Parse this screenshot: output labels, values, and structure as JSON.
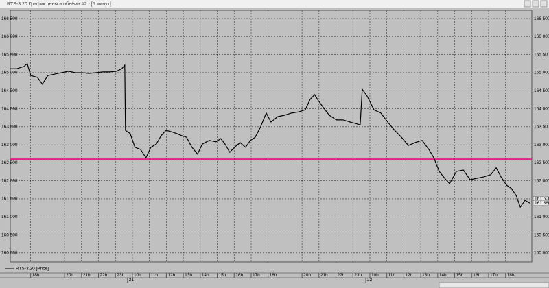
{
  "window_title": "RTS-3.20 График цены и объёма #2 - [5 минут]",
  "chart_data": {
    "type": "line",
    "legend": "RTS-3.20 [Price]",
    "series": [
      {
        "name": "RTS-3.20 [Price]",
        "color": "#000000",
        "x": [
          -1.2,
          -0.81,
          -0.4,
          -0.2,
          0,
          0.4,
          0.69,
          1.01,
          1.42,
          1.82,
          2.23,
          2.63,
          3.04,
          3.44,
          3.85,
          4.25,
          4.66,
          5.06,
          5.38,
          5.55,
          5.59,
          5.87,
          6.15,
          6.48,
          6.8,
          7.09,
          7.41,
          7.69,
          7.98,
          8.3,
          8.62,
          8.91,
          9.19,
          9.51,
          9.84,
          10.12,
          10.53,
          10.93,
          11.21,
          11.46,
          11.74,
          12.02,
          12.35,
          12.67,
          12.96,
          13.24,
          13.56,
          13.89,
          14.17,
          14.57,
          14.98,
          15.38,
          15.79,
          16.19,
          16.48,
          16.74,
          17.0,
          17.29,
          17.61,
          18.02,
          18.42,
          18.83,
          19.15,
          19.43,
          19.55,
          19.84,
          20.24,
          20.65,
          21.05,
          21.46,
          21.86,
          22.27,
          22.67,
          23.08,
          23.48,
          23.77,
          24.09,
          24.41,
          24.7,
          25.1,
          25.51,
          25.91,
          26.32,
          26.72,
          27.13,
          27.45,
          27.73,
          28.06,
          28.34,
          28.62,
          28.87,
          29.15,
          29.43
        ],
        "values": [
          165110,
          165110,
          165170,
          165250,
          164920,
          164870,
          164680,
          164920,
          164960,
          165000,
          165040,
          165000,
          165000,
          164980,
          165000,
          165020,
          165020,
          165040,
          165110,
          165210,
          163400,
          163310,
          162930,
          162870,
          162640,
          162930,
          163020,
          163250,
          163400,
          163360,
          163310,
          163250,
          163210,
          162930,
          162740,
          163020,
          163120,
          163080,
          163170,
          163020,
          162790,
          162930,
          163060,
          162930,
          163120,
          163210,
          163500,
          163880,
          163630,
          163780,
          163820,
          163880,
          163910,
          163970,
          164260,
          164390,
          164200,
          164010,
          163820,
          163690,
          163690,
          163630,
          163590,
          163550,
          164540,
          164350,
          163970,
          163880,
          163630,
          163400,
          163210,
          162980,
          163060,
          163120,
          162870,
          162640,
          162260,
          162070,
          161920,
          162260,
          162300,
          162030,
          162070,
          162110,
          162170,
          162360,
          162110,
          161880,
          161790,
          161600,
          161270,
          161460,
          161380
        ]
      }
    ],
    "xlim": [
      -1.2,
      29.55
    ],
    "xticks": [
      {
        "value": 0,
        "label": "18h"
      },
      {
        "value": 2,
        "label": "20h"
      },
      {
        "value": 3,
        "label": "21h"
      },
      {
        "value": 4,
        "label": "22h"
      },
      {
        "value": 5,
        "label": "23h"
      },
      {
        "value": 6,
        "label": "10h"
      },
      {
        "value": 7,
        "label": "11h"
      },
      {
        "value": 8,
        "label": "12h"
      },
      {
        "value": 9,
        "label": "13h"
      },
      {
        "value": 10,
        "label": "14h"
      },
      {
        "value": 11,
        "label": "15h"
      },
      {
        "value": 12,
        "label": "16h"
      },
      {
        "value": 13,
        "label": "17h"
      },
      {
        "value": 14,
        "label": "18h"
      },
      {
        "value": 16,
        "label": "20h"
      },
      {
        "value": 17,
        "label": "21h"
      },
      {
        "value": 18,
        "label": "22h"
      },
      {
        "value": 19,
        "label": "23h"
      },
      {
        "value": 20,
        "label": "10h"
      },
      {
        "value": 21,
        "label": "11h"
      },
      {
        "value": 22,
        "label": "12h"
      },
      {
        "value": 23,
        "label": "13h"
      },
      {
        "value": 24,
        "label": "14h"
      },
      {
        "value": 25,
        "label": "15h"
      },
      {
        "value": 26,
        "label": "16h"
      },
      {
        "value": 27,
        "label": "17h"
      },
      {
        "value": 28,
        "label": "18h"
      }
    ],
    "day_ticks": [
      {
        "value": 5.71,
        "label": "21"
      },
      {
        "value": 19.76,
        "label": "22"
      }
    ],
    "ylim": [
      159750,
      166730
    ],
    "yticks": [
      {
        "value": 166500,
        "label": "166 500"
      },
      {
        "value": 166000,
        "label": "166 000"
      },
      {
        "value": 165500,
        "label": "165 500"
      },
      {
        "value": 165000,
        "label": "165 000"
      },
      {
        "value": 164500,
        "label": "164 500"
      },
      {
        "value": 164000,
        "label": "164 000"
      },
      {
        "value": 163500,
        "label": "163 500"
      },
      {
        "value": 163000,
        "label": "163 000"
      },
      {
        "value": 162500,
        "label": "162 500"
      },
      {
        "value": 162000,
        "label": "162 000"
      },
      {
        "value": 161500,
        "label": "161 500"
      },
      {
        "value": 161000,
        "label": "161 000"
      },
      {
        "value": 160500,
        "label": "160 500"
      },
      {
        "value": 160000,
        "label": "160 000"
      }
    ],
    "level_line": {
      "value": 162600,
      "color": "#e0208f"
    },
    "price_markers": [
      {
        "value": 161500,
        "label": "161 500"
      },
      {
        "value": 161380,
        "label": "161 380"
      }
    ],
    "grid": true
  }
}
